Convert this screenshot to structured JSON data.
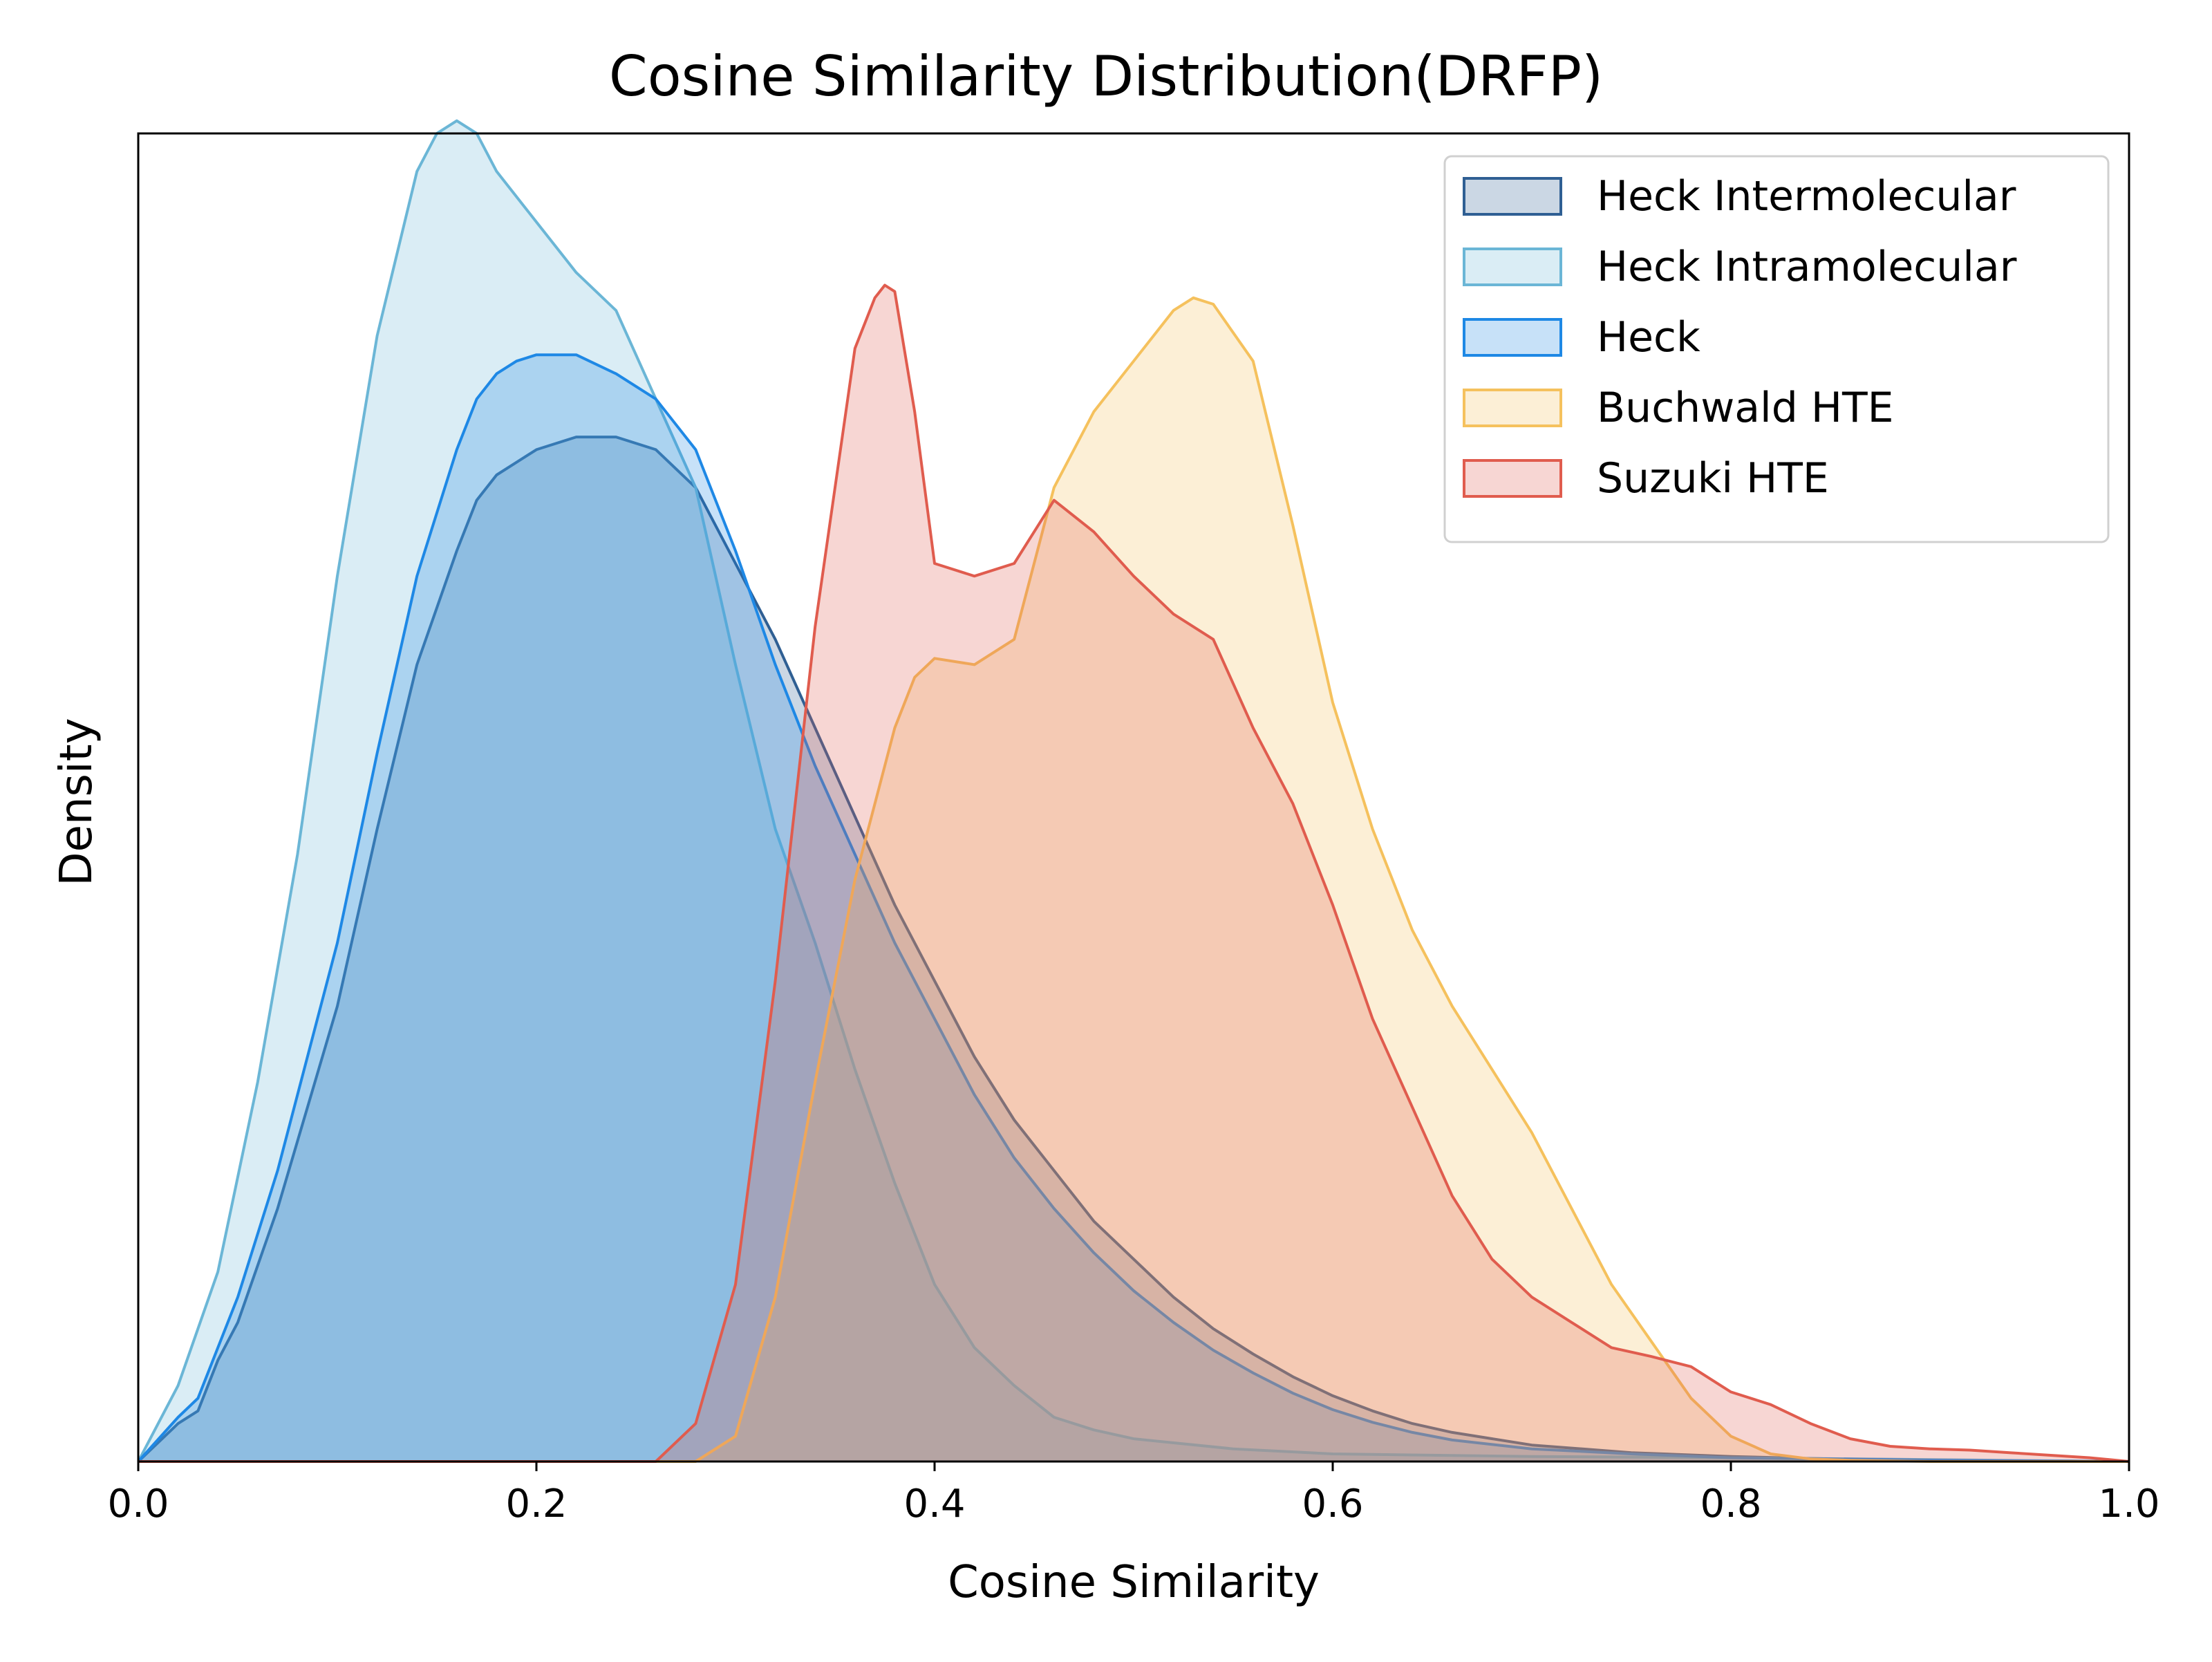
{
  "chart_data": {
    "type": "area",
    "title": "Cosine Similarity Distribution(DRFP)",
    "xlabel": "Cosine Similarity",
    "ylabel": "Density",
    "xlim": [
      0.0,
      1.0
    ],
    "ylim": [
      0,
      1.05
    ],
    "x_ticks": [
      "0.0",
      "0.2",
      "0.4",
      "0.6",
      "0.8",
      "1.0"
    ],
    "y_ticks": [],
    "grid": false,
    "legend_position": "top-right",
    "series": [
      {
        "name": "Heck Intermolecular",
        "color": "#2f5f93",
        "x": [
          0.0,
          0.02,
          0.03,
          0.04,
          0.05,
          0.07,
          0.1,
          0.12,
          0.14,
          0.16,
          0.17,
          0.18,
          0.19,
          0.2,
          0.22,
          0.24,
          0.26,
          0.28,
          0.3,
          0.32,
          0.34,
          0.36,
          0.38,
          0.4,
          0.42,
          0.44,
          0.46,
          0.48,
          0.5,
          0.52,
          0.54,
          0.56,
          0.58,
          0.6,
          0.62,
          0.64,
          0.66,
          0.7,
          0.75,
          0.8,
          0.85,
          0.9,
          1.0
        ],
        "y": [
          0.0,
          0.03,
          0.04,
          0.08,
          0.11,
          0.2,
          0.36,
          0.5,
          0.63,
          0.72,
          0.76,
          0.78,
          0.79,
          0.8,
          0.81,
          0.81,
          0.8,
          0.77,
          0.71,
          0.65,
          0.58,
          0.51,
          0.44,
          0.38,
          0.32,
          0.27,
          0.23,
          0.19,
          0.16,
          0.13,
          0.105,
          0.085,
          0.067,
          0.052,
          0.04,
          0.03,
          0.023,
          0.013,
          0.007,
          0.004,
          0.002,
          0.001,
          0.0
        ]
      },
      {
        "name": "Heck Intramolecular",
        "color": "#6bb6d6",
        "x": [
          0.0,
          0.02,
          0.04,
          0.06,
          0.08,
          0.1,
          0.12,
          0.14,
          0.15,
          0.16,
          0.17,
          0.18,
          0.2,
          0.22,
          0.24,
          0.26,
          0.28,
          0.3,
          0.32,
          0.34,
          0.36,
          0.38,
          0.4,
          0.42,
          0.44,
          0.46,
          0.48,
          0.5,
          0.55,
          0.6,
          0.7,
          0.8,
          1.0
        ],
        "y": [
          0.0,
          0.06,
          0.15,
          0.3,
          0.48,
          0.7,
          0.89,
          1.02,
          1.05,
          1.06,
          1.05,
          1.02,
          0.98,
          0.94,
          0.91,
          0.84,
          0.77,
          0.63,
          0.5,
          0.41,
          0.31,
          0.22,
          0.14,
          0.09,
          0.06,
          0.035,
          0.025,
          0.018,
          0.01,
          0.006,
          0.004,
          0.003,
          0.0
        ]
      },
      {
        "name": "Heck",
        "color": "#1e88e5",
        "x": [
          0.0,
          0.02,
          0.03,
          0.04,
          0.05,
          0.07,
          0.1,
          0.12,
          0.14,
          0.16,
          0.17,
          0.18,
          0.19,
          0.2,
          0.22,
          0.24,
          0.26,
          0.28,
          0.3,
          0.32,
          0.34,
          0.36,
          0.38,
          0.4,
          0.42,
          0.44,
          0.46,
          0.48,
          0.5,
          0.52,
          0.54,
          0.56,
          0.58,
          0.6,
          0.62,
          0.64,
          0.66,
          0.7,
          0.75,
          0.8,
          0.85,
          0.9,
          1.0
        ],
        "y": [
          0.0,
          0.035,
          0.05,
          0.09,
          0.13,
          0.23,
          0.41,
          0.56,
          0.7,
          0.8,
          0.84,
          0.86,
          0.87,
          0.875,
          0.875,
          0.86,
          0.84,
          0.8,
          0.72,
          0.63,
          0.55,
          0.48,
          0.41,
          0.35,
          0.29,
          0.24,
          0.2,
          0.165,
          0.135,
          0.11,
          0.088,
          0.07,
          0.054,
          0.041,
          0.031,
          0.023,
          0.017,
          0.01,
          0.006,
          0.003,
          0.002,
          0.001,
          0.0
        ]
      },
      {
        "name": "Buchwald HTE",
        "color": "#f5c15d",
        "x": [
          0.0,
          0.28,
          0.3,
          0.32,
          0.34,
          0.36,
          0.38,
          0.39,
          0.4,
          0.42,
          0.44,
          0.46,
          0.48,
          0.5,
          0.52,
          0.53,
          0.54,
          0.56,
          0.58,
          0.6,
          0.62,
          0.64,
          0.66,
          0.68,
          0.7,
          0.72,
          0.74,
          0.76,
          0.78,
          0.8,
          0.82,
          0.84,
          0.86,
          0.9,
          0.95,
          1.0
        ],
        "y": [
          0.0,
          0.0,
          0.02,
          0.13,
          0.3,
          0.46,
          0.58,
          0.62,
          0.635,
          0.63,
          0.65,
          0.77,
          0.83,
          0.87,
          0.91,
          0.92,
          0.915,
          0.87,
          0.74,
          0.6,
          0.5,
          0.42,
          0.36,
          0.31,
          0.26,
          0.2,
          0.14,
          0.095,
          0.05,
          0.02,
          0.006,
          0.002,
          0.001,
          0.0,
          0.0,
          0.0
        ]
      },
      {
        "name": "Suzuki HTE",
        "color": "#e05c4e",
        "x": [
          0.0,
          0.26,
          0.28,
          0.3,
          0.32,
          0.34,
          0.36,
          0.37,
          0.375,
          0.38,
          0.39,
          0.4,
          0.42,
          0.44,
          0.46,
          0.48,
          0.5,
          0.52,
          0.54,
          0.56,
          0.58,
          0.6,
          0.62,
          0.64,
          0.66,
          0.68,
          0.7,
          0.72,
          0.74,
          0.76,
          0.78,
          0.8,
          0.82,
          0.84,
          0.86,
          0.88,
          0.9,
          0.92,
          0.94,
          0.96,
          0.98,
          1.0
        ],
        "y": [
          0.0,
          0.0,
          0.03,
          0.14,
          0.38,
          0.66,
          0.88,
          0.92,
          0.93,
          0.925,
          0.83,
          0.71,
          0.7,
          0.71,
          0.76,
          0.735,
          0.7,
          0.67,
          0.65,
          0.58,
          0.52,
          0.44,
          0.35,
          0.28,
          0.21,
          0.16,
          0.13,
          0.11,
          0.09,
          0.083,
          0.075,
          0.055,
          0.045,
          0.03,
          0.018,
          0.012,
          0.01,
          0.009,
          0.007,
          0.005,
          0.003,
          0.0
        ]
      }
    ]
  }
}
